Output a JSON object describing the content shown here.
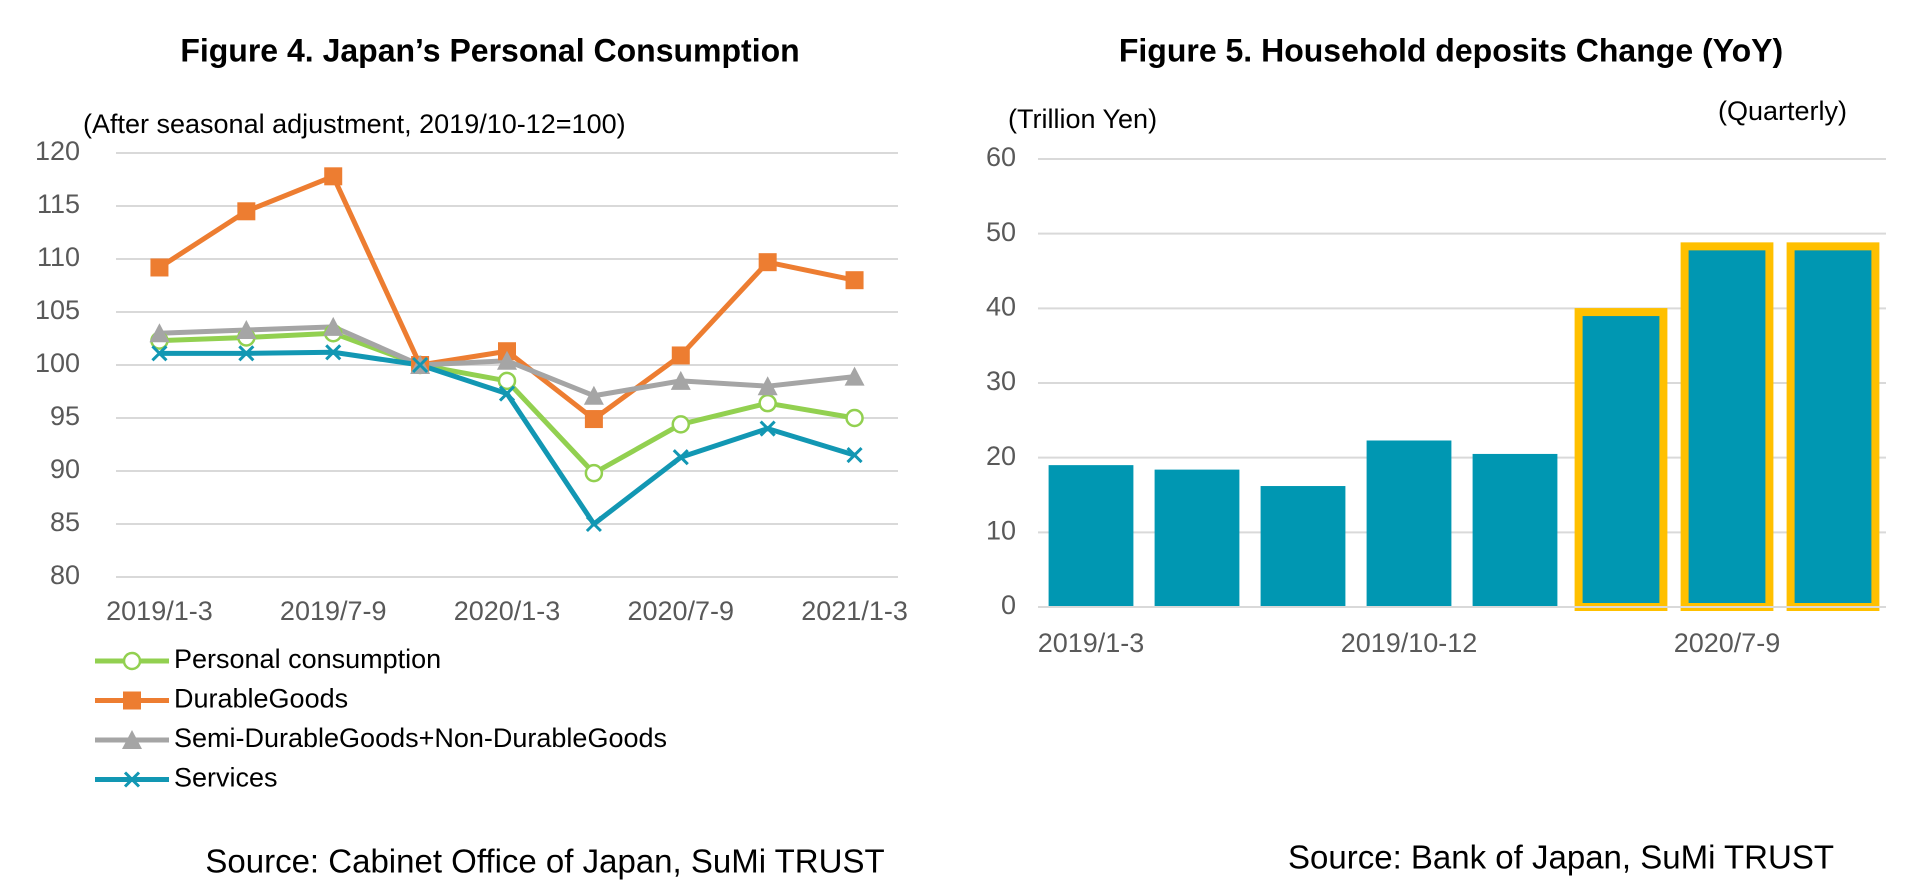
{
  "chart_data": [
    {
      "type": "line",
      "title": "Figure 4. Japan’s Personal Consumption",
      "subtitle": "(After seasonal adjustment, 2019/10-12=100)",
      "source": "Source: Cabinet Office of Japan, SuMi TRUST",
      "categories": [
        "2019/1-3",
        null,
        "2019/7-9",
        null,
        "2020/1-3",
        null,
        "2020/7-9",
        null,
        "2021/1-3"
      ],
      "series": [
        {
          "name": "Personal consumption",
          "color": "#92d050",
          "marker": "circle",
          "values": [
            102.3,
            102.6,
            103.0,
            100,
            98.5,
            89.8,
            94.4,
            96.4,
            95.0
          ]
        },
        {
          "name": "DurableGoods",
          "color": "#ed7d31",
          "marker": "square",
          "values": [
            109.2,
            114.5,
            117.8,
            100,
            101.3,
            94.9,
            100.9,
            109.7,
            108.0
          ]
        },
        {
          "name": "Semi-DurableGoods+Non-DurableGoods",
          "color": "#a5a5a5",
          "marker": "triangle",
          "values": [
            103.0,
            103.3,
            103.6,
            100,
            100.4,
            97.1,
            98.5,
            98.0,
            98.9
          ]
        },
        {
          "name": "Services",
          "color": "#1297b3",
          "marker": "x",
          "values": [
            101.1,
            101.1,
            101.2,
            100,
            97.3,
            85.0,
            91.3,
            94.0,
            91.5
          ]
        }
      ],
      "ylim": [
        80,
        120
      ],
      "yticks": [
        80,
        85,
        90,
        95,
        100,
        105,
        110,
        115,
        120
      ],
      "grid": true,
      "legend": "bottom"
    },
    {
      "type": "bar",
      "title": "Figure 5. Household deposits Change (YoY)",
      "y_label": "(Trillion Yen)",
      "note": "(Quarterly)",
      "source": "Source: Bank of Japan, SuMi TRUST",
      "categories": [
        "2019/1-3",
        null,
        null,
        "2019/10-12",
        null,
        null,
        "2020/7-9",
        null
      ],
      "values": [
        19.0,
        18.4,
        16.2,
        22.3,
        20.5,
        39.5,
        48.3,
        48.3
      ],
      "color": "#0097b2",
      "highlight_color": "#ffc000",
      "highlighted": [
        false,
        false,
        false,
        false,
        false,
        true,
        true,
        true
      ],
      "ylim": [
        0,
        60
      ],
      "yticks": [
        0,
        10,
        20,
        30,
        40,
        50,
        60
      ],
      "grid": true
    }
  ]
}
